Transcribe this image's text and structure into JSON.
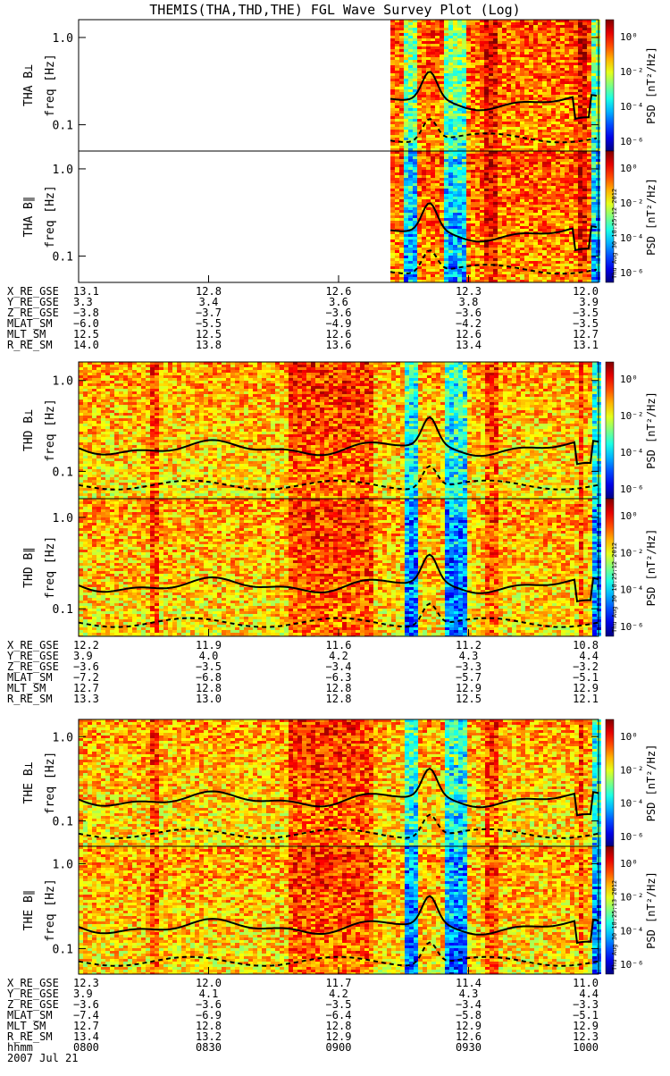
{
  "title": "THEMIS(THA,THD,THE) FGL Wave Survey Plot (Log)",
  "colorbar": {
    "label": "PSD [nT²/Hz]",
    "ticks": [
      "10⁰",
      "10⁻²",
      "10⁻⁴",
      "10⁻⁶"
    ]
  },
  "chart_data": [
    {
      "type": "heatmap",
      "probe": "THA",
      "panels": [
        {
          "ylabel": "THA B⊥",
          "yunit": "freq [Hz]",
          "yticks": [
            "1.0",
            "0.1"
          ],
          "ylim": [
            0.05,
            1.6
          ]
        },
        {
          "ylabel": "THA B∥",
          "yunit": "freq [Hz]",
          "yticks": [
            "1.0",
            "0.1"
          ],
          "ylim": [
            0.05,
            1.6
          ]
        }
      ],
      "data_start_fraction": 0.6,
      "stamp": "Thu Aug 30 18:25:12 2012",
      "ephemeris": [
        {
          "label": "X_RE_GSE",
          "values": [
            "13.1",
            "12.8",
            "12.6",
            "12.3",
            "12.0"
          ]
        },
        {
          "label": "Y_RE_GSE",
          "values": [
            "3.3",
            "3.4",
            "3.6",
            "3.8",
            "3.9"
          ]
        },
        {
          "label": "Z_RE_GSE",
          "values": [
            "−3.8",
            "−3.7",
            "−3.6",
            "−3.6",
            "−3.5"
          ]
        },
        {
          "label": "MLAT_SM",
          "values": [
            "−6.0",
            "−5.5",
            "−4.9",
            "−4.2",
            "−3.5"
          ]
        },
        {
          "label": "MLT_SM",
          "values": [
            "12.5",
            "12.5",
            "12.6",
            "12.6",
            "12.7"
          ]
        },
        {
          "label": "R_RE_SM",
          "values": [
            "14.0",
            "13.8",
            "13.6",
            "13.4",
            "13.1"
          ]
        }
      ]
    },
    {
      "type": "heatmap",
      "probe": "THD",
      "panels": [
        {
          "ylabel": "THD B⊥",
          "yunit": "freq [Hz]",
          "yticks": [
            "1.0",
            "0.1"
          ],
          "ylim": [
            0.05,
            1.6
          ]
        },
        {
          "ylabel": "THD B∥",
          "yunit": "freq [Hz]",
          "yticks": [
            "1.0",
            "0.1"
          ],
          "ylim": [
            0.05,
            1.6
          ]
        }
      ],
      "data_start_fraction": 0,
      "stamp": "Thu Aug 30 18:25:12 2012",
      "ephemeris": [
        {
          "label": "X_RE_GSE",
          "values": [
            "12.2",
            "11.9",
            "11.6",
            "11.2",
            "10.8"
          ]
        },
        {
          "label": "Y_RE_GSE",
          "values": [
            "3.9",
            "4.0",
            "4.2",
            "4.3",
            "4.4"
          ]
        },
        {
          "label": "Z_RE_GSE",
          "values": [
            "−3.6",
            "−3.5",
            "−3.4",
            "−3.3",
            "−3.2"
          ]
        },
        {
          "label": "MLAT_SM",
          "values": [
            "−7.2",
            "−6.8",
            "−6.3",
            "−5.7",
            "−5.1"
          ]
        },
        {
          "label": "MLT_SM",
          "values": [
            "12.7",
            "12.8",
            "12.8",
            "12.9",
            "12.9"
          ]
        },
        {
          "label": "R_RE_SM",
          "values": [
            "13.3",
            "13.0",
            "12.8",
            "12.5",
            "12.1"
          ]
        }
      ]
    },
    {
      "type": "heatmap",
      "probe": "THE",
      "panels": [
        {
          "ylabel": "THE B⊥",
          "yunit": "freq [Hz]",
          "yticks": [
            "1.0",
            "0.1"
          ],
          "ylim": [
            0.05,
            1.6
          ]
        },
        {
          "ylabel": "THE B∥",
          "yunit": "freq [Hz]",
          "yticks": [
            "1.0",
            "0.1"
          ],
          "ylim": [
            0.05,
            1.6
          ]
        }
      ],
      "data_start_fraction": 0,
      "stamp": "Thu Aug 30 18:25:13 2012",
      "ephemeris": [
        {
          "label": "X_RE_GSE",
          "values": [
            "12.3",
            "12.0",
            "11.7",
            "11.4",
            "11.0"
          ]
        },
        {
          "label": "Y_RE_GSE",
          "values": [
            "3.9",
            "4.1",
            "4.2",
            "4.3",
            "4.4"
          ]
        },
        {
          "label": "Z_RE_GSE",
          "values": [
            "−3.6",
            "−3.6",
            "−3.5",
            "−3.4",
            "−3.3"
          ]
        },
        {
          "label": "MLAT_SM",
          "values": [
            "−7.4",
            "−6.9",
            "−6.4",
            "−5.8",
            "−5.1"
          ]
        },
        {
          "label": "MLT_SM",
          "values": [
            "12.7",
            "12.8",
            "12.8",
            "12.9",
            "12.9"
          ]
        },
        {
          "label": "R_RE_SM",
          "values": [
            "13.4",
            "13.2",
            "12.9",
            "12.6",
            "12.3"
          ]
        },
        {
          "label": "hhmm",
          "values": [
            "0800",
            "0830",
            "0900",
            "0930",
            "1000"
          ]
        }
      ],
      "date": "2007 Jul 21"
    }
  ]
}
